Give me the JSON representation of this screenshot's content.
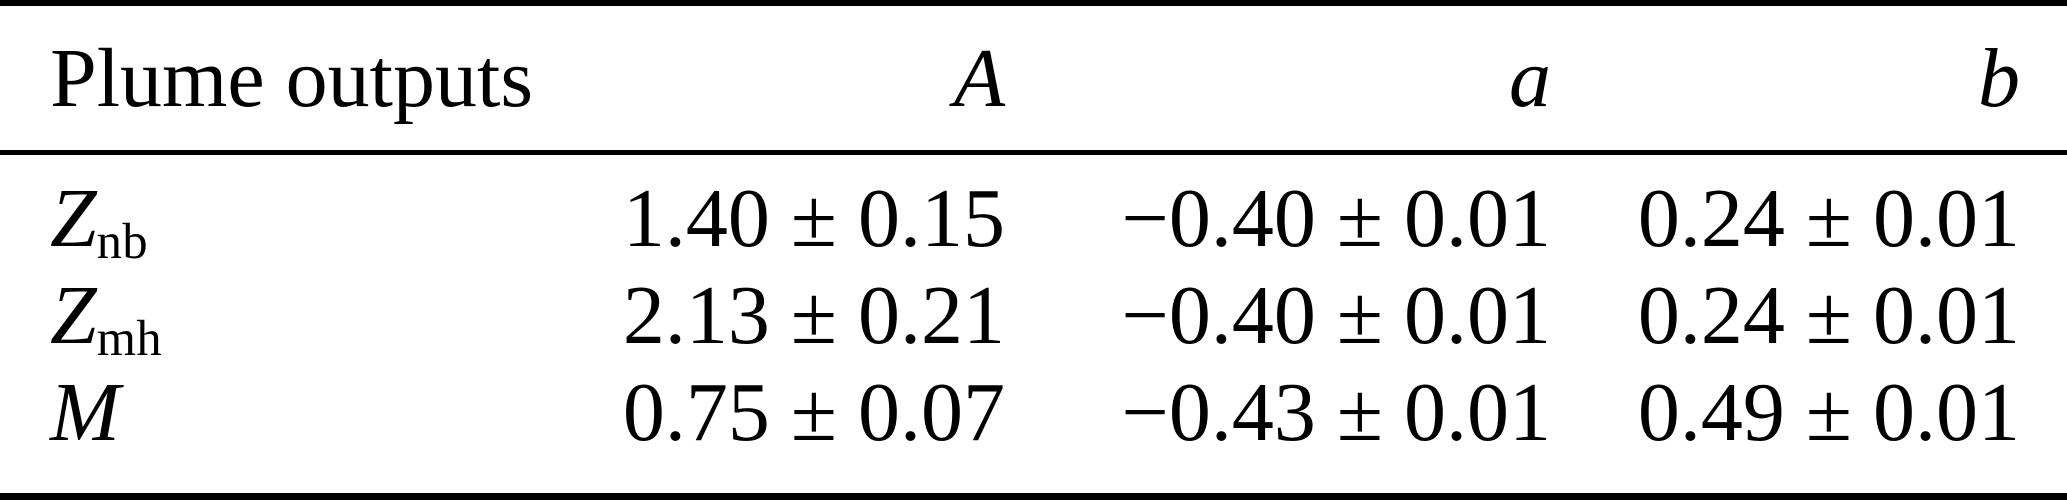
{
  "page": {
    "background": "#ffffff",
    "text_color": "#000000",
    "rule_color": "#000000"
  },
  "table": {
    "headers": {
      "label": "Plume outputs",
      "A": "A",
      "a": "a",
      "b": "b"
    },
    "rows": [
      {
        "label_base": "Z",
        "label_sub": "nb",
        "A": "1.40 ± 0.15",
        "a": "−0.40 ± 0.01",
        "b": "0.24 ± 0.01"
      },
      {
        "label_base": "Z",
        "label_sub": "mh",
        "A": "2.13 ± 0.21",
        "a": "−0.40 ± 0.01",
        "b": "0.24 ± 0.01"
      },
      {
        "label_base": "M",
        "label_sub": "",
        "A": "0.75 ± 0.07",
        "a": "−0.43 ± 0.01",
        "b": "0.49 ± 0.01"
      }
    ]
  }
}
